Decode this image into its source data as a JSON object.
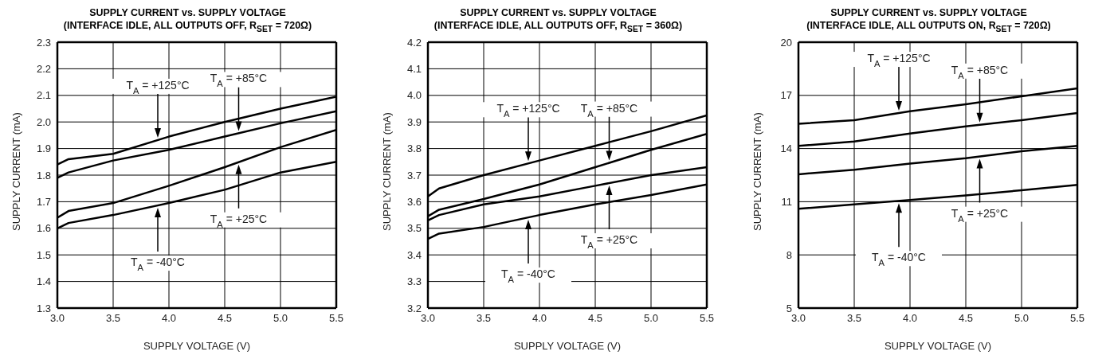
{
  "chart_data": [
    {
      "type": "line",
      "title": "SUPPLY CURRENT vs. SUPPLY VOLTAGE",
      "subtitle": "(INTERFACE IDLE, ALL OUTPUTS OFF, R$_{SET}$ = 720Ω)",
      "xlabel": "SUPPLY VOLTAGE (V)",
      "ylabel": "SUPPLY CURRENT (mA)",
      "xlim": [
        3,
        5.5
      ],
      "xticks": [
        {
          "value": 3,
          "label": "3.0"
        },
        3.5,
        {
          "value": 4,
          "label": "4.0"
        },
        4.5,
        {
          "value": 5,
          "label": "5.0"
        },
        5.5
      ],
      "ylim": [
        1.3,
        2.3
      ],
      "yticks": [
        1.3,
        1.4,
        1.5,
        1.6,
        1.7,
        1.8,
        1.9,
        {
          "value": 2,
          "label": "2.0"
        },
        2.1,
        2.2,
        2.3
      ],
      "grid": true,
      "legend": false,
      "marker": "none",
      "line_style": "solid",
      "series": [
        {
          "color": "#000000",
          "x": [
            3,
            3.1,
            3.5,
            4,
            4.5,
            5,
            5.5
          ],
          "values": [
            1.84,
            1.86,
            1.88,
            1.945,
            2.0,
            2.05,
            2.095
          ]
        },
        {
          "color": "#000000",
          "x": [
            3,
            3.1,
            3.5,
            4,
            4.5,
            5,
            5.5
          ],
          "values": [
            1.79,
            1.81,
            1.855,
            1.895,
            1.945,
            1.995,
            2.04
          ]
        },
        {
          "color": "#000000",
          "x": [
            3,
            3.1,
            3.5,
            4,
            4.5,
            5,
            5.5
          ],
          "values": [
            1.64,
            1.665,
            1.695,
            1.76,
            1.83,
            1.905,
            1.97
          ]
        },
        {
          "color": "#000000",
          "x": [
            3,
            3.1,
            3.5,
            4,
            4.5,
            5,
            5.5
          ],
          "values": [
            1.6,
            1.62,
            1.65,
            1.695,
            1.745,
            1.81,
            1.85
          ]
        }
      ],
      "annotations": [
        "T$_{A}$ = +125°C",
        "T$_{A}$ = +85°C",
        "T$_{A}$ = +25°C",
        "T$_{A}$ = -40°C"
      ]
    },
    {
      "type": "line",
      "title": "SUPPLY CURRENT vs. SUPPLY VOLTAGE",
      "subtitle": "(INTERFACE IDLE, ALL OUTPUTS OFF, R$_{SET}$ = 360Ω)",
      "xlabel": "SUPPLY VOLTAGE (V)",
      "ylabel": "SUPPLY CURRENT (mA)",
      "xlim": [
        3,
        5.5
      ],
      "xticks": [
        {
          "value": 3,
          "label": "3.0"
        },
        3.5,
        {
          "value": 4,
          "label": "4.0"
        },
        4.5,
        {
          "value": 5,
          "label": "5.0"
        },
        5.5
      ],
      "ylim": [
        3.2,
        4.2
      ],
      "yticks": [
        3.2,
        3.3,
        3.4,
        3.5,
        3.6,
        3.7,
        3.8,
        3.9,
        {
          "value": 4,
          "label": "4.0"
        },
        4.1,
        4.2
      ],
      "grid": true,
      "legend": false,
      "marker": "none",
      "line_style": "solid",
      "series": [
        {
          "color": "#000000",
          "x": [
            3,
            3.1,
            3.5,
            4,
            4.5,
            5,
            5.5
          ],
          "values": [
            3.62,
            3.65,
            3.7,
            3.755,
            3.81,
            3.865,
            3.925
          ]
        },
        {
          "color": "#000000",
          "x": [
            3,
            3.1,
            3.5,
            4,
            4.5,
            5,
            5.5
          ],
          "values": [
            3.545,
            3.57,
            3.61,
            3.665,
            3.73,
            3.795,
            3.855
          ]
        },
        {
          "color": "#000000",
          "x": [
            3,
            3.1,
            3.5,
            4,
            4.5,
            5,
            5.5
          ],
          "values": [
            3.53,
            3.55,
            3.59,
            3.62,
            3.66,
            3.7,
            3.73
          ]
        },
        {
          "color": "#000000",
          "x": [
            3,
            3.1,
            3.5,
            4,
            4.5,
            5,
            5.5
          ],
          "values": [
            3.46,
            3.48,
            3.505,
            3.55,
            3.59,
            3.625,
            3.665
          ]
        }
      ],
      "annotations": [
        "T$_{A}$ = +125°C",
        "T$_{A}$ = +85°C",
        "T$_{A}$ = +25°C",
        "T$_{A}$ = -40°C"
      ]
    },
    {
      "type": "line",
      "title": "SUPPLY CURRENT vs. SUPPLY VOLTAGE",
      "subtitle": "(INTERFACE IDLE, ALL OUTPUTS ON, R$_{SET}$ = 720Ω)",
      "xlabel": "SUPPLY VOLTAGE (V)",
      "ylabel": "SUPPLY CURRENT (mA)",
      "xlim": [
        3,
        5.5
      ],
      "xticks": [
        {
          "value": 3,
          "label": "3.0"
        },
        3.5,
        {
          "value": 4,
          "label": "4.0"
        },
        4.5,
        {
          "value": 5,
          "label": "5.0"
        },
        5.5
      ],
      "ylim": [
        5,
        20
      ],
      "yticks": [
        5,
        8,
        11,
        14,
        17,
        20
      ],
      "grid": true,
      "legend": false,
      "marker": "none",
      "line_style": "solid",
      "series": [
        {
          "color": "#000000",
          "x": [
            3,
            3.5,
            4,
            4.5,
            5,
            5.5
          ],
          "values": [
            15.4,
            15.6,
            16.1,
            16.5,
            16.95,
            17.4
          ]
        },
        {
          "color": "#000000",
          "x": [
            3,
            3.5,
            4,
            4.5,
            5,
            5.5
          ],
          "values": [
            14.15,
            14.4,
            14.85,
            15.25,
            15.6,
            16.0
          ]
        },
        {
          "color": "#000000",
          "x": [
            3,
            3.5,
            4,
            4.5,
            5,
            5.5
          ],
          "values": [
            12.55,
            12.8,
            13.15,
            13.45,
            13.85,
            14.15
          ]
        },
        {
          "color": "#000000",
          "x": [
            3,
            3.5,
            4,
            4.5,
            5,
            5.5
          ],
          "values": [
            10.6,
            10.85,
            11.1,
            11.35,
            11.65,
            11.95
          ]
        }
      ],
      "annotations": [
        "T$_{A}$ = +125°C",
        "T$_{A}$ = +85°C",
        "T$_{A}$ = +25°C",
        "T$_{A}$ = -40°C"
      ]
    }
  ]
}
